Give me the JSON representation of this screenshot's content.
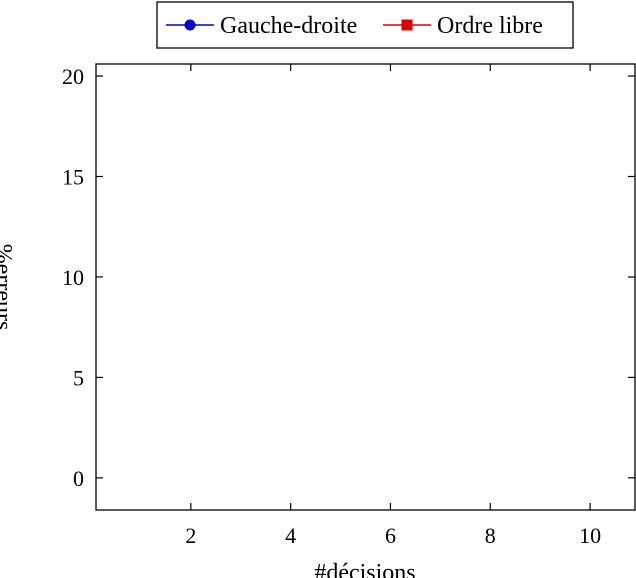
{
  "chart_data": {
    "type": "line",
    "title": "",
    "xlabel": "#décisions",
    "ylabel": "%erreurs",
    "xlim": [
      0.1,
      10.9
    ],
    "ylim": [
      -1.6,
      20.6
    ],
    "xticks": [
      2,
      4,
      6,
      8,
      10
    ],
    "yticks": [
      0,
      5,
      10,
      15,
      20
    ],
    "grid": false,
    "legend_position": "top-center",
    "series": [
      {
        "name": "Gauche-droite",
        "color": "#0000cc",
        "marker": "circle",
        "x": [],
        "y": []
      },
      {
        "name": "Ordre libre",
        "color": "#dd0000",
        "marker": "square",
        "x": [],
        "y": []
      }
    ]
  }
}
